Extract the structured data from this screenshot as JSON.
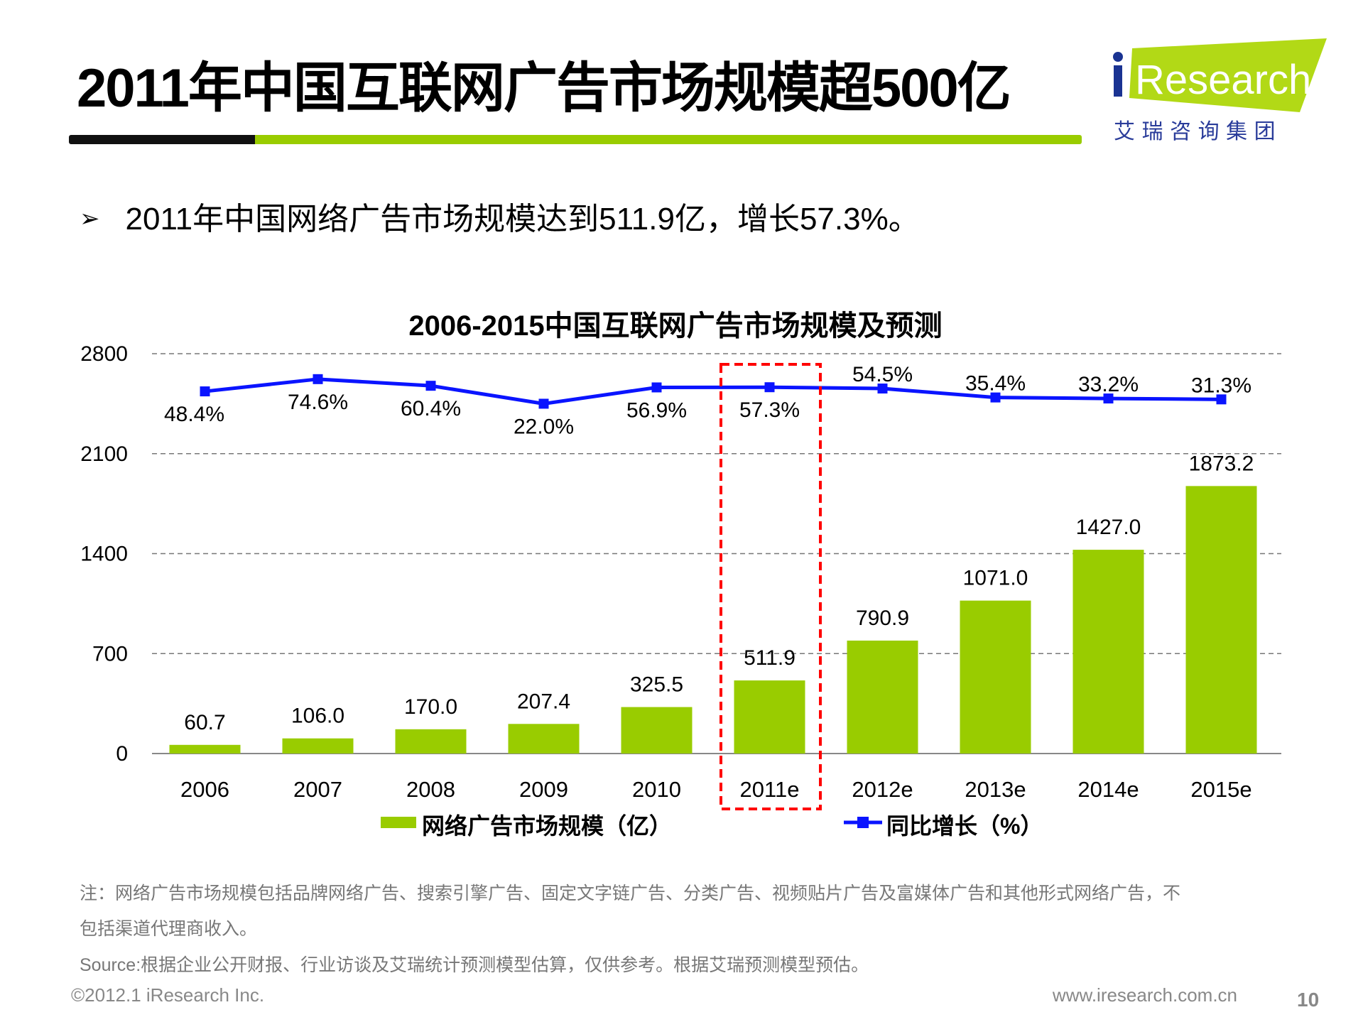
{
  "header": {
    "title": "2011年中国互联网广告市场规模超500亿",
    "logo_text": "iResearch",
    "logo_subtitle": "艾 瑞 咨 询 集 团"
  },
  "bullet": {
    "text": "2011年中国网络广告市场规模达到511.9亿，增长57.3%。"
  },
  "chart_data": {
    "type": "bar",
    "title": "2006-2015中国互联网广告市场规模及预测",
    "categories": [
      "2006",
      "2007",
      "2008",
      "2009",
      "2010",
      "2011e",
      "2012e",
      "2013e",
      "2014e",
      "2015e"
    ],
    "series": [
      {
        "name": "网络广告市场规模（亿）",
        "type": "bar",
        "color": "#99cc00",
        "values": [
          60.7,
          106.0,
          170.0,
          207.4,
          325.5,
          511.9,
          790.9,
          1071.0,
          1427.0,
          1873.2
        ],
        "labels": [
          "60.7",
          "106.0",
          "170.0",
          "207.4",
          "325.5",
          "511.9",
          "790.9",
          "1071.0",
          "1427.0",
          "1873.2"
        ]
      },
      {
        "name": "同比增长（%）",
        "type": "line",
        "axis": "secondary",
        "color": "#0a14ff",
        "values": [
          48.4,
          74.6,
          60.4,
          22.0,
          56.9,
          57.3,
          54.5,
          35.4,
          33.2,
          31.3
        ],
        "labels": [
          "48.4%",
          "74.6%",
          "60.4%",
          "22.0%",
          "56.9%",
          "57.3%",
          "54.5%",
          "35.4%",
          "33.2%",
          "31.3%"
        ]
      }
    ],
    "ylim": [
      0,
      2800
    ],
    "yticks": [
      "0",
      "700",
      "1400",
      "2100",
      "2800"
    ],
    "y2lim": [
      -726,
      129
    ],
    "grid": true,
    "legend": "bottom",
    "highlight_category": "2011e",
    "highlight_color": "#ff0000"
  },
  "footer": {
    "note_line1": "注：网络广告市场规模包括品牌网络广告、搜索引擎广告、固定文字链广告、分类广告、视频贴片广告及富媒体广告和其他形式网络广告，不",
    "note_line2": "包括渠道代理商收入。",
    "source": "Source:根据企业公开财报、行业访谈及艾瑞统计预测模型估算，仅供参考。根据艾瑞预测模型预估。",
    "copyright": "©2012.1 iResearch Inc.",
    "website": "www.iresearch.com.cn",
    "page_number": "10"
  }
}
